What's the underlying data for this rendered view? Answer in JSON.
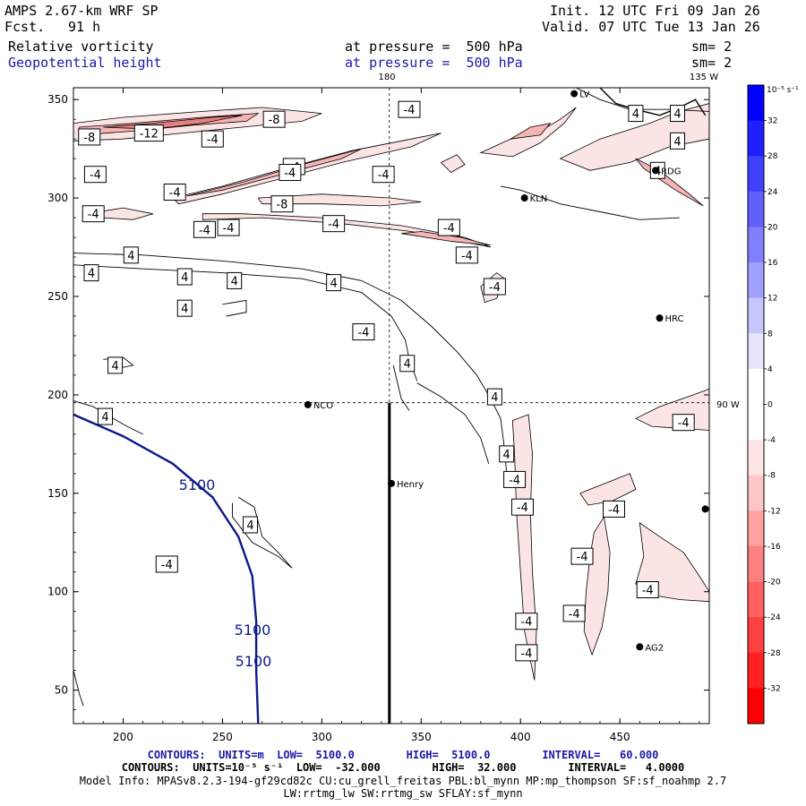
{
  "header": {
    "model": "AMPS 2.67-km WRF SP",
    "init": "Init. 12 UTC Fri 09 Jan 26",
    "fcst_label": "Fcst.",
    "fcst_hours": "91 h",
    "valid": "Valid. 07 UTC Tue 13 Jan 26",
    "field1": "Relative vorticity",
    "field1_pressure": "at pressure =  500 hPa",
    "field1_sm": "sm= 2",
    "field2": "Geopotential height",
    "field2_pressure": "at pressure =  500 hPa",
    "field2_sm": "sm= 2"
  },
  "colors": {
    "height_contour": "#0b1a8c",
    "vorticity_contour": "#000000",
    "neg_fill_light": "#fbe4e4",
    "neg_fill_mid": "#f5b5b5",
    "neg_fill_dark": "#e88080"
  },
  "chart_data": {
    "type": "contour-map",
    "x_ticks": [
      "200",
      "250",
      "300",
      "350",
      "400",
      "450"
    ],
    "y_ticks": [
      "50",
      "100",
      "150",
      "200",
      "250",
      "300",
      "350"
    ],
    "xlim": [
      175,
      495
    ],
    "ylim": [
      33,
      356
    ],
    "meridian_labels": [
      "180",
      "135 W",
      "90 W"
    ],
    "height_contours": [
      {
        "value": 5100,
        "label": "5100",
        "points": [
          [
            175,
            190
          ],
          [
            200,
            179
          ],
          [
            225,
            165
          ],
          [
            245,
            148
          ],
          [
            258,
            128
          ],
          [
            265,
            108
          ],
          [
            267,
            85
          ],
          [
            267,
            60
          ],
          [
            268,
            33
          ]
        ]
      }
    ],
    "height_labels": [
      "5100",
      "5100",
      "5100"
    ],
    "cross_section": [
      [
        334,
        33
      ],
      [
        334,
        196
      ]
    ],
    "stations": [
      {
        "name": "NCO",
        "x": 293,
        "y": 195
      },
      {
        "name": "Henry",
        "x": 335,
        "y": 155
      },
      {
        "name": "KLN",
        "x": 402,
        "y": 300
      },
      {
        "name": "RDG",
        "x": 468,
        "y": 314
      },
      {
        "name": "HRC",
        "x": 470,
        "y": 239
      },
      {
        "name": "AG2",
        "x": 460,
        "y": 72
      },
      {
        "name": "LV",
        "x": 427,
        "y": 353
      },
      {
        "name": "",
        "x": 493,
        "y": 142
      }
    ],
    "contour_labels": [
      {
        "text": "-8",
        "x": 183,
        "y": 331
      },
      {
        "text": "-12",
        "x": 213,
        "y": 333
      },
      {
        "text": "-8",
        "x": 276,
        "y": 340
      },
      {
        "text": "-4",
        "x": 344,
        "y": 345
      },
      {
        "text": "-4",
        "x": 245,
        "y": 330
      },
      {
        "text": "-4",
        "x": 286,
        "y": 316
      },
      {
        "text": "-4",
        "x": 186,
        "y": 312
      },
      {
        "text": "-4",
        "x": 226,
        "y": 303
      },
      {
        "text": "-4",
        "x": 284,
        "y": 313
      },
      {
        "text": "-4",
        "x": 331,
        "y": 312
      },
      {
        "text": "-8",
        "x": 280,
        "y": 297
      },
      {
        "text": "-4",
        "x": 185,
        "y": 292
      },
      {
        "text": "-4",
        "x": 241,
        "y": 284
      },
      {
        "text": "-4",
        "x": 253,
        "y": 285
      },
      {
        "text": "-4",
        "x": 306,
        "y": 287
      },
      {
        "text": "-4",
        "x": 364,
        "y": 285
      },
      {
        "text": "4",
        "x": 204,
        "y": 271
      },
      {
        "text": "-4",
        "x": 373,
        "y": 271
      },
      {
        "text": "4",
        "x": 184,
        "y": 262
      },
      {
        "text": "4",
        "x": 231,
        "y": 260
      },
      {
        "text": "4",
        "x": 256,
        "y": 258
      },
      {
        "text": "4",
        "x": 306,
        "y": 257
      },
      {
        "text": "-4",
        "x": 387,
        "y": 255
      },
      {
        "text": "4",
        "x": 231,
        "y": 244
      },
      {
        "text": "-4",
        "x": 321,
        "y": 232
      },
      {
        "text": "4",
        "x": 196,
        "y": 215
      },
      {
        "text": "4",
        "x": 343,
        "y": 216
      },
      {
        "text": "4",
        "x": 387,
        "y": 199
      },
      {
        "text": "4",
        "x": 191,
        "y": 189
      },
      {
        "text": "-4",
        "x": 482,
        "y": 186
      },
      {
        "text": "4",
        "x": 393,
        "y": 170
      },
      {
        "text": "-4",
        "x": 397,
        "y": 157
      },
      {
        "text": "-4",
        "x": 401,
        "y": 143
      },
      {
        "text": "-4",
        "x": 447,
        "y": 142
      },
      {
        "text": "4",
        "x": 264,
        "y": 134
      },
      {
        "text": "-4",
        "x": 431,
        "y": 118
      },
      {
        "text": "-4",
        "x": 222,
        "y": 114
      },
      {
        "text": "-4",
        "x": 464,
        "y": 101
      },
      {
        "text": "-4",
        "x": 427,
        "y": 89
      },
      {
        "text": "-4",
        "x": 403,
        "y": 85
      },
      {
        "text": "-4",
        "x": 403,
        "y": 69
      },
      {
        "text": "4",
        "x": 458,
        "y": 343
      },
      {
        "text": "4",
        "x": 479,
        "y": 343
      },
      {
        "text": "4",
        "x": 479,
        "y": 329
      },
      {
        "text": "4",
        "x": 469,
        "y": 314
      }
    ]
  },
  "colorbar": {
    "unit": "10⁻⁵ s⁻¹",
    "labels": [
      "32",
      "28",
      "24",
      "20",
      "16",
      "12",
      "8",
      "4",
      "0",
      "-4",
      "-8",
      "-12",
      "-16",
      "-20",
      "-24",
      "-28",
      "-32"
    ],
    "colors": [
      "#0000ff",
      "#2020ff",
      "#4040ff",
      "#6060ff",
      "#8080ff",
      "#a0a0ff",
      "#c6c6ff",
      "#e6e6ff",
      "#ffffff",
      "#ffffff",
      "#ffe6e6",
      "#ffc6c6",
      "#ffa0a0",
      "#ff8080",
      "#ff6060",
      "#ff4040",
      "#ff2020",
      "#ff0000"
    ]
  },
  "footer": {
    "line1": "CONTOURS:  UNITS=m  LOW=  5100.0        HIGH=  5100.0        INTERVAL=   60.000",
    "line2": "CONTOURS:  UNITS=10⁻⁵ s⁻¹  LOW=  -32.000        HIGH=  32.000        INTERVAL=   4.0000",
    "line3": "Model Info: MPASv8.2.3-194-gf29cd82c CU:cu_grell_freitas PBL:bl_mynn MP:mp_thompson SF:sf_noahmp 2.7",
    "line4": "LW:rrtmg_lw SW:rrtmg_sw SFLAY:sf_mynn"
  }
}
